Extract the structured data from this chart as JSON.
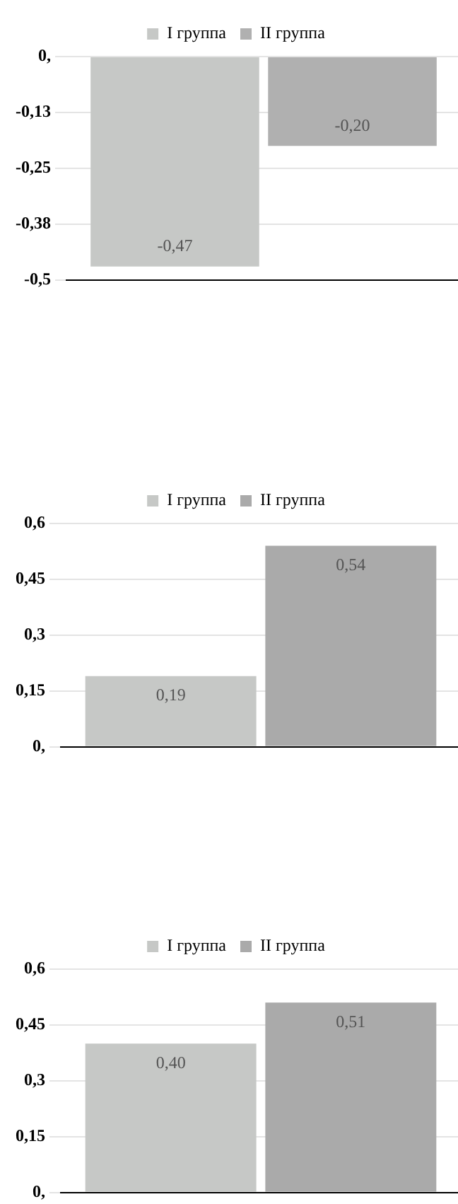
{
  "chart_data": [
    {
      "type": "bar",
      "categories": [
        null
      ],
      "series": [
        {
          "name": "I группа",
          "color": "#c6c8c6",
          "values": [
            -0.47
          ],
          "value_labels": [
            "-0,47"
          ]
        },
        {
          "name": "II группа",
          "color": "#b0b0b0",
          "values": [
            -0.2
          ],
          "value_labels": [
            "-0,20"
          ]
        }
      ],
      "ylim": [
        -0.5,
        0
      ],
      "yticks": [
        {
          "value": 0,
          "label": "0,"
        },
        {
          "value": -0.125,
          "label": "-0,13"
        },
        {
          "value": -0.25,
          "label": "-0,25"
        },
        {
          "value": -0.375,
          "label": "-0,38"
        },
        {
          "value": -0.5,
          "label": "-0,5"
        }
      ],
      "grid": "y",
      "legend": "top"
    },
    {
      "type": "bar",
      "categories": [
        null
      ],
      "series": [
        {
          "name": "I группа",
          "color": "#c6c8c6",
          "values": [
            0.19
          ],
          "value_labels": [
            "0,19"
          ]
        },
        {
          "name": "II группа",
          "color": "#aaaaaa",
          "values": [
            0.54
          ],
          "value_labels": [
            "0,54"
          ]
        }
      ],
      "ylim": [
        0,
        0.6
      ],
      "yticks": [
        {
          "value": 0,
          "label": "0,"
        },
        {
          "value": 0.15,
          "label": "0,15"
        },
        {
          "value": 0.3,
          "label": "0,3"
        },
        {
          "value": 0.45,
          "label": "0,45"
        },
        {
          "value": 0.6,
          "label": "0,6"
        }
      ],
      "grid": "y",
      "legend": "top"
    },
    {
      "type": "bar",
      "categories": [
        null
      ],
      "series": [
        {
          "name": "I группа",
          "color": "#c6c8c6",
          "values": [
            0.4
          ],
          "value_labels": [
            "0,40"
          ]
        },
        {
          "name": "II группа",
          "color": "#aaaaaa",
          "values": [
            0.51
          ],
          "value_labels": [
            "0,51"
          ]
        }
      ],
      "ylim": [
        0,
        0.6
      ],
      "yticks": [
        {
          "value": 0,
          "label": "0,"
        },
        {
          "value": 0.15,
          "label": "0,15"
        },
        {
          "value": 0.3,
          "label": "0,3"
        },
        {
          "value": 0.45,
          "label": "0,45"
        },
        {
          "value": 0.6,
          "label": "0,6"
        }
      ],
      "grid": "y",
      "legend": "top"
    }
  ]
}
